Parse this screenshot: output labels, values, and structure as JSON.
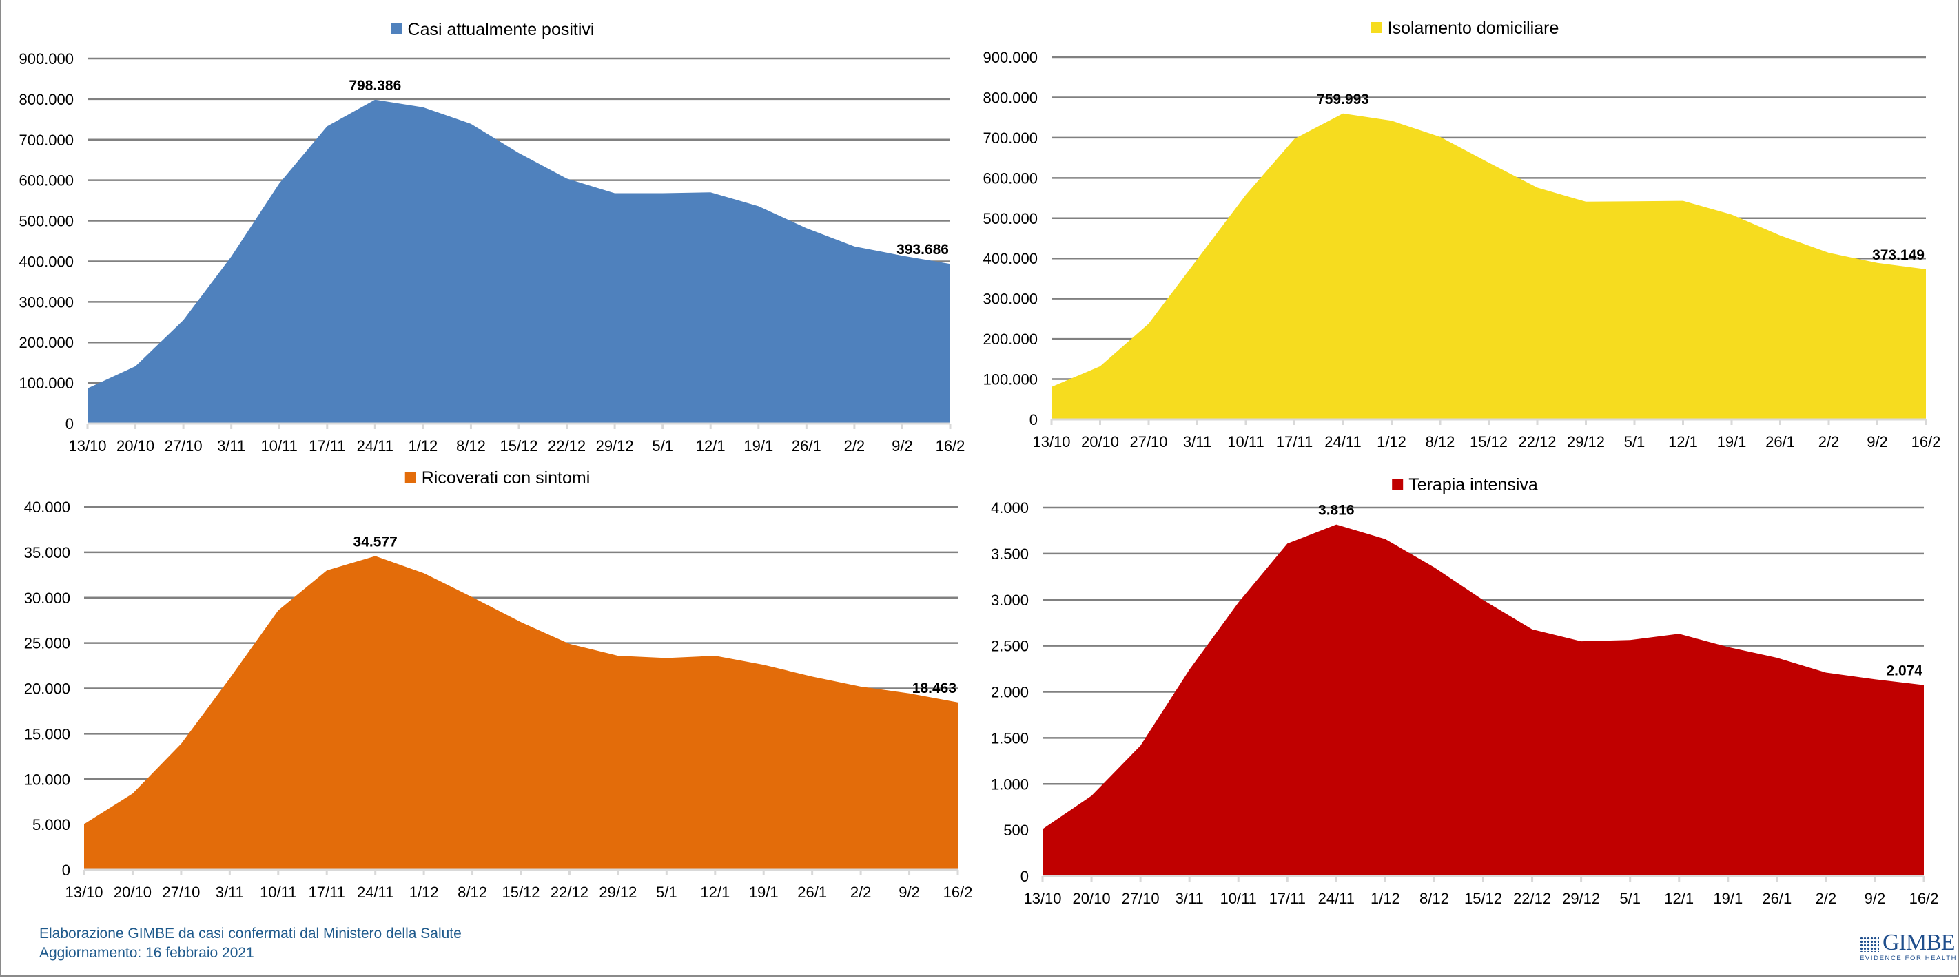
{
  "chart_data": [
    {
      "id": "casi-attualmente-positivi",
      "type": "area",
      "title": "Casi attualmente positivi",
      "legend": "Casi attualmente positivi",
      "legend_position": "top-center",
      "color": "#4f81bd",
      "categories": [
        "13/10",
        "20/10",
        "27/10",
        "3/11",
        "10/11",
        "17/11",
        "24/11",
        "1/12",
        "8/12",
        "15/12",
        "22/12",
        "29/12",
        "5/1",
        "12/1",
        "19/1",
        "26/1",
        "2/2",
        "9/2",
        "16/2"
      ],
      "values": [
        86800,
        141500,
        255000,
        412000,
        592000,
        733000,
        798386,
        780000,
        739000,
        667000,
        604000,
        568000,
        568000,
        570000,
        536000,
        482000,
        437000,
        414000,
        393686
      ],
      "ylim": [
        0,
        900000
      ],
      "yticks": [
        0,
        100000,
        200000,
        300000,
        400000,
        500000,
        600000,
        700000,
        800000,
        900000
      ],
      "ytick_labels": [
        "0",
        "100.000",
        "200.000",
        "300.000",
        "400.000",
        "500.000",
        "600.000",
        "700.000",
        "800.000",
        "900.000"
      ],
      "grid": true,
      "annotations": [
        {
          "category": "24/11",
          "text": "798.386"
        },
        {
          "category": "16/2",
          "text": "393.686"
        }
      ],
      "xlabel": "",
      "ylabel": ""
    },
    {
      "id": "isolamento-domiciliare",
      "type": "area",
      "title": "Isolamento domiciliare",
      "legend": "Isolamento domiciliare",
      "legend_position": "top-center",
      "color": "#f6dc1f",
      "categories": [
        "13/10",
        "20/10",
        "27/10",
        "3/11",
        "10/11",
        "17/11",
        "24/11",
        "1/12",
        "8/12",
        "15/12",
        "22/12",
        "29/12",
        "5/1",
        "12/1",
        "19/1",
        "26/1",
        "2/2",
        "9/2",
        "16/2"
      ],
      "values": [
        81000,
        132000,
        238000,
        398000,
        558000,
        697000,
        759993,
        742000,
        702000,
        638000,
        576000,
        541000,
        542000,
        543000,
        509000,
        457000,
        414000,
        389000,
        373149
      ],
      "ylim": [
        0,
        900000
      ],
      "yticks": [
        0,
        100000,
        200000,
        300000,
        400000,
        500000,
        600000,
        700000,
        800000,
        900000
      ],
      "ytick_labels": [
        "0",
        "100.000",
        "200.000",
        "300.000",
        "400.000",
        "500.000",
        "600.000",
        "700.000",
        "800.000",
        "900.000"
      ],
      "grid": true,
      "annotations": [
        {
          "category": "24/11",
          "text": "759.993"
        },
        {
          "category": "16/2",
          "text": "373.149"
        }
      ],
      "xlabel": "",
      "ylabel": ""
    },
    {
      "id": "ricoverati-con-sintomi",
      "type": "area",
      "title": "Ricoverati con sintomi",
      "legend": "Ricoverati con sintomi",
      "legend_position": "top-center",
      "color": "#e36c0a",
      "categories": [
        "13/10",
        "20/10",
        "27/10",
        "3/11",
        "10/11",
        "17/11",
        "24/11",
        "1/12",
        "8/12",
        "15/12",
        "22/12",
        "29/12",
        "5/1",
        "12/1",
        "19/1",
        "26/1",
        "2/2",
        "9/2",
        "16/2"
      ],
      "values": [
        5050,
        8400,
        13900,
        21100,
        28600,
        33000,
        34577,
        32700,
        30050,
        27300,
        24900,
        23600,
        23350,
        23600,
        22600,
        21300,
        20200,
        19450,
        18463
      ],
      "ylim": [
        0,
        40000
      ],
      "yticks": [
        0,
        5000,
        10000,
        15000,
        20000,
        25000,
        30000,
        35000,
        40000
      ],
      "ytick_labels": [
        "0",
        "5.000",
        "10.000",
        "15.000",
        "20.000",
        "25.000",
        "30.000",
        "35.000",
        "40.000"
      ],
      "grid": true,
      "annotations": [
        {
          "category": "24/11",
          "text": "34.577"
        },
        {
          "category": "16/2",
          "text": "18.463"
        }
      ],
      "xlabel": "",
      "ylabel": ""
    },
    {
      "id": "terapia-intensiva",
      "type": "area",
      "title": "Terapia intensiva",
      "legend": "Terapia intensiva",
      "legend_position": "top-center",
      "color": "#c00000",
      "categories": [
        "13/10",
        "20/10",
        "27/10",
        "3/11",
        "10/11",
        "17/11",
        "24/11",
        "1/12",
        "8/12",
        "15/12",
        "22/12",
        "29/12",
        "5/1",
        "12/1",
        "19/1",
        "26/1",
        "2/2",
        "9/2",
        "16/2"
      ],
      "values": [
        511,
        872,
        1416,
        2242,
        2970,
        3609,
        3816,
        3658,
        3351,
        2997,
        2679,
        2549,
        2562,
        2630,
        2486,
        2370,
        2209,
        2136,
        2074
      ],
      "ylim": [
        0,
        4000
      ],
      "yticks": [
        0,
        500,
        1000,
        1500,
        2000,
        2500,
        3000,
        3500,
        4000
      ],
      "ytick_labels": [
        "0",
        "500",
        "1.000",
        "1.500",
        "2.000",
        "2.500",
        "3.000",
        "3.500",
        "4.000"
      ],
      "grid": true,
      "annotations": [
        {
          "category": "24/11",
          "text": "3.816"
        },
        {
          "category": "16/2",
          "text": "2.074"
        }
      ],
      "xlabel": "",
      "ylabel": ""
    }
  ],
  "footer": {
    "line1": "Elaborazione GIMBE da casi confermati dal Ministero della Salute",
    "line2": "Aggiornamento: 16 febbraio 2021"
  },
  "logo": {
    "name": "GIMBE",
    "tagline": "EVIDENCE FOR HEALTH",
    "color": "#1f4e8c"
  }
}
